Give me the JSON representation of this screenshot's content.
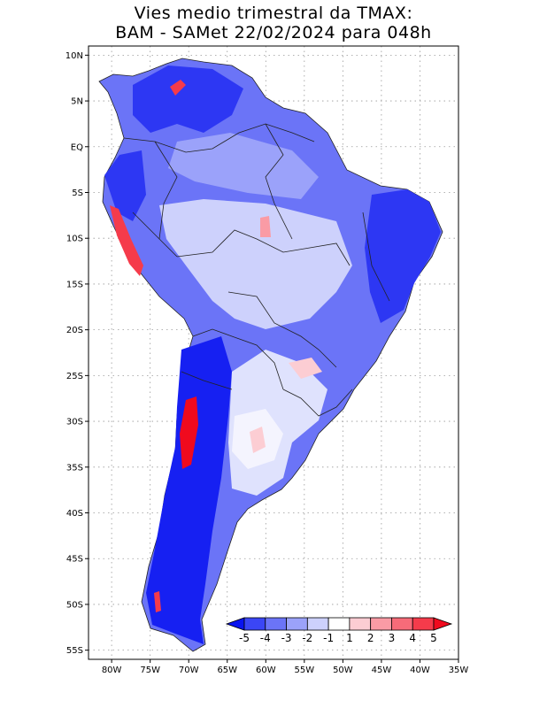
{
  "title": {
    "line1": "Vies medio trimestral da TMAX:",
    "line2": "BAM - SAMet 22/02/2024  para 048h"
  },
  "map": {
    "region": "South America",
    "lon_range": [
      -83,
      -35
    ],
    "lat_range": [
      -56,
      11
    ],
    "gridlines": "dotted",
    "x_ticks": [
      "80W",
      "75W",
      "70W",
      "65W",
      "60W",
      "55W",
      "50W",
      "45W",
      "40W",
      "35W"
    ],
    "y_ticks": [
      "10N",
      "5N",
      "EQ",
      "5S",
      "10S",
      "15S",
      "20S",
      "25S",
      "30S",
      "35S",
      "40S",
      "45S",
      "50S",
      "55S"
    ]
  },
  "colorbar": {
    "labels": [
      "-5",
      "-4",
      "-3",
      "-2",
      "-1",
      "1",
      "2",
      "3",
      "4",
      "5"
    ],
    "colors": [
      "#0a14f0",
      "#3b46f5",
      "#6b74f7",
      "#9ba2fa",
      "#cdd1fc",
      "#ffffff",
      "#fccdd3",
      "#fa9ba5",
      "#f76b79",
      "#f53b4b",
      "#f00a1e"
    ]
  },
  "legend_colors": {
    "strong_negative": "#0a14f0",
    "negative": "#6b74f7",
    "weak_negative": "#cdd1fc",
    "neutral": "#ffffff",
    "positive": "#fa9ba5",
    "strong_positive": "#f00a1e"
  }
}
